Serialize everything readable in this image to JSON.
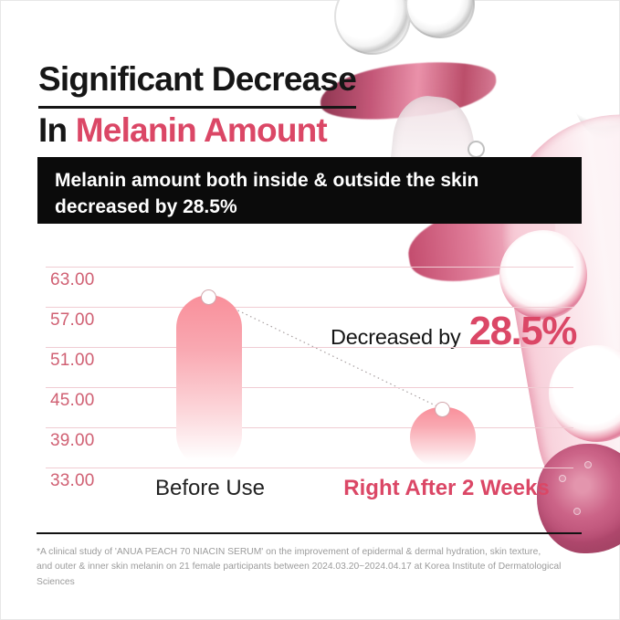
{
  "title": {
    "line1": "Significant Decrease",
    "line2_prefix": "In ",
    "line2_highlight": "Melanin Amount"
  },
  "banner": {
    "line1": "Melanin amount both inside & outside the skin",
    "line2": "decreased by 28.5%"
  },
  "chart_data": {
    "type": "bar",
    "title": "Melanin amount: before use vs right after 2 weeks",
    "categories": [
      "Before Use",
      "Right After 2 Weeks"
    ],
    "values": [
      58.8,
      42.0
    ],
    "ylim": [
      33,
      63
    ],
    "y_ticks": [
      "63.00",
      "57.00",
      "51.00",
      "45.00",
      "39.00",
      "33.00"
    ],
    "grid": true,
    "legend_position": "none",
    "annotation": {
      "label": "Decreased by",
      "value": "28.5%"
    },
    "decrease_percent": "28.5%"
  },
  "footnote": {
    "line1": "*A clinical study of 'ANUA PEACH 70 NIACIN SERUM' on the improvement of epidermal & dermal hydration, skin texture,",
    "line2": "and outer & inner skin melanin on 21 female participants between 2024.03.20~2024.04.17 at Korea Institute of Dermatological Sciences"
  },
  "colors": {
    "accent_pink": "#db4766",
    "axis_label_pink": "#d06073",
    "gridline_pink": "#f0ccd3",
    "banner_bg": "#0b0b0b",
    "footnote_gray": "#9b9b9b",
    "bar_gradient_top": "#f98f9a"
  },
  "icons": {
    "background": "serum-droplet-photo"
  }
}
